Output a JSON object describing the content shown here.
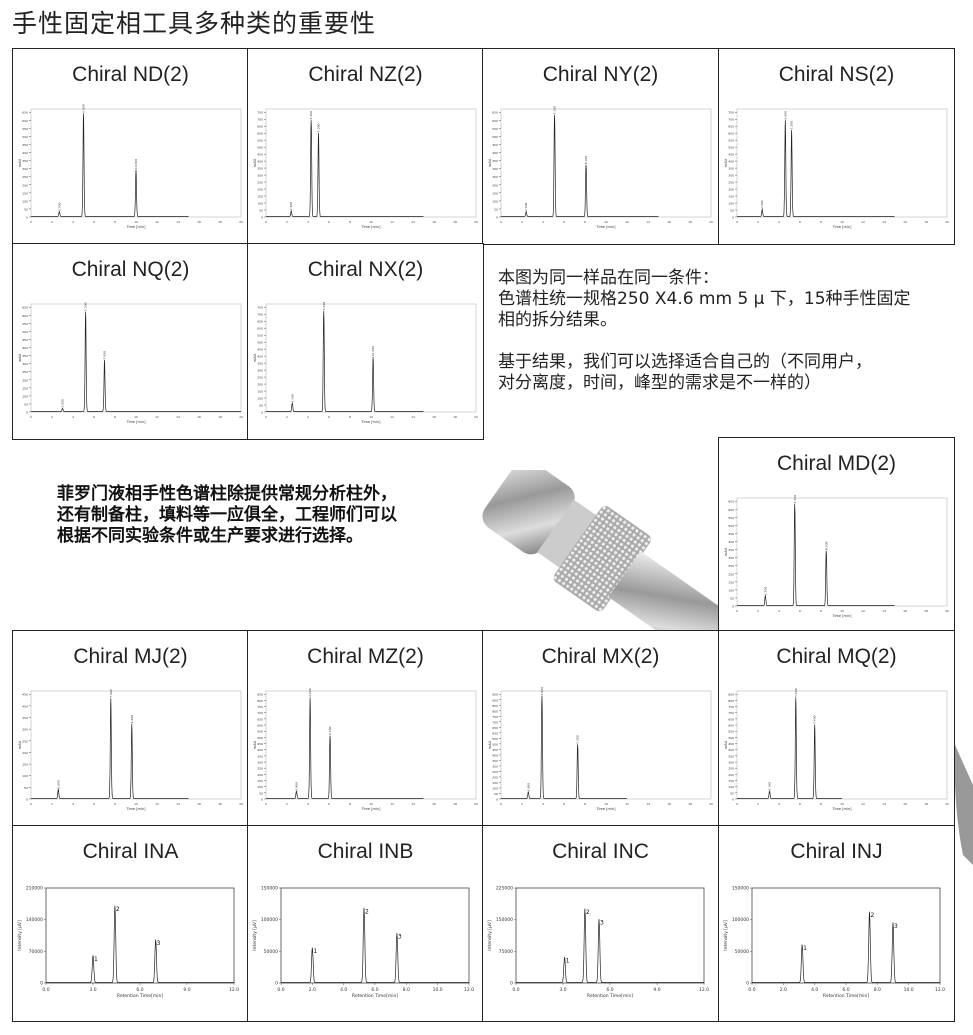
{
  "page_title": "手性固定相工具多种类的重要性",
  "note_1": [
    "本图为同一样品在同一条件：",
    "色谱柱统一规格250 X4.6 mm 5 μ 下，15种手性固定",
    "相的拆分结果。"
  ],
  "note_2": [
    "基于结果，我们可以选择适合自己的（不同用户，",
    "对分离度，时间，峰型的需求是不一样的）"
  ],
  "note_3": [
    "菲罗门液相手性色谱柱除提供常规分析柱外，",
    "还有制备柱，填料等一应俱全，工程师们可以",
    "根据不同实验条件或生产要求进行选择。"
  ],
  "chart_data": [
    {
      "type": "line",
      "title": "Chiral ND(2)",
      "xlabel": "Time [min]",
      "ylabel": "mAU",
      "xlim": [
        0,
        20
      ],
      "ylim": [
        0,
        650
      ],
      "peaks": [
        [
          2.7,
          30
        ],
        [
          5.0,
          640
        ],
        [
          10.0,
          290
        ]
      ],
      "trace_end": 15
    },
    {
      "type": "line",
      "title": "Chiral NZ(2)",
      "xlabel": "Time [min]",
      "ylabel": "mAU",
      "xlim": [
        0,
        20
      ],
      "ylim": [
        0,
        750
      ],
      "peaks": [
        [
          2.4,
          40
        ],
        [
          4.3,
          690
        ],
        [
          5.0,
          600
        ]
      ],
      "trace_end": 15
    },
    {
      "type": "line",
      "title": "Chiral NY(2)",
      "xlabel": "Time [min]",
      "ylabel": "mAU",
      "xlim": [
        0,
        20
      ],
      "ylim": [
        0,
        650
      ],
      "peaks": [
        [
          2.4,
          30
        ],
        [
          5.1,
          630
        ],
        [
          8.1,
          320
        ]
      ],
      "trace_end": 15
    },
    {
      "type": "line",
      "title": "Chiral NS(2)",
      "xlabel": "Time [min]",
      "ylabel": "mAU",
      "xlim": [
        0,
        20
      ],
      "ylim": [
        0,
        750
      ],
      "peaks": [
        [
          2.4,
          50
        ],
        [
          4.6,
          690
        ],
        [
          5.2,
          620
        ]
      ],
      "trace_end": 15
    },
    {
      "type": "line",
      "title": "Chiral NQ(2)",
      "xlabel": "Time [min]",
      "ylabel": "mAU",
      "xlim": [
        0,
        20
      ],
      "ylim": [
        0,
        650
      ],
      "peaks": [
        [
          3.0,
          20
        ],
        [
          5.2,
          620
        ],
        [
          7.0,
          320
        ]
      ],
      "trace_end": 20
    },
    {
      "type": "line",
      "title": "Chiral NX(2)",
      "xlabel": "Time [min]",
      "ylabel": "mAU",
      "xlim": [
        0,
        20
      ],
      "ylim": [
        0,
        750
      ],
      "peaks": [
        [
          2.5,
          60
        ],
        [
          5.5,
          720
        ],
        [
          10.2,
          390
        ]
      ],
      "trace_end": 15
    },
    {
      "type": "line",
      "title": "Chiral MD(2)",
      "xlabel": "Time [min]",
      "ylabel": "mAU",
      "xlim": [
        0,
        20
      ],
      "ylim": [
        0,
        650
      ],
      "peaks": [
        [
          2.7,
          60
        ],
        [
          5.5,
          630
        ],
        [
          8.5,
          340
        ]
      ],
      "trace_end": 15
    },
    {
      "type": "line",
      "title": "Chiral MJ(2)",
      "xlabel": "Time [min]",
      "ylabel": "mAU",
      "xlim": [
        0,
        20
      ],
      "ylim": [
        0,
        450
      ],
      "peaks": [
        [
          2.6,
          40
        ],
        [
          7.6,
          430
        ],
        [
          9.6,
          320
        ]
      ],
      "trace_end": 15
    },
    {
      "type": "line",
      "title": "Chiral MZ(2)",
      "xlabel": "Time [min]",
      "ylabel": "mAU",
      "xlim": [
        0,
        20
      ],
      "ylim": [
        0,
        850
      ],
      "peaks": [
        [
          2.9,
          60
        ],
        [
          4.2,
          820
        ],
        [
          6.1,
          510
        ]
      ],
      "trace_end": 15
    },
    {
      "type": "line",
      "title": "Chiral MX(2)",
      "xlabel": "Time [min]",
      "ylabel": "mAU",
      "xlim": [
        0,
        20
      ],
      "ylim": [
        0,
        950
      ],
      "peaks": [
        [
          2.6,
          60
        ],
        [
          3.9,
          930
        ],
        [
          7.3,
          490
        ]
      ],
      "trace_end": 12
    },
    {
      "type": "line",
      "title": "Chiral MQ(2)",
      "xlabel": "Time [min]",
      "ylabel": "mAU",
      "xlim": [
        0,
        20
      ],
      "ylim": [
        0,
        850
      ],
      "peaks": [
        [
          3.1,
          60
        ],
        [
          5.6,
          820
        ],
        [
          7.4,
          600
        ]
      ],
      "trace_end": 10
    },
    {
      "type": "line",
      "title": "Chiral INA",
      "xlabel": "Retention Time[min]",
      "ylabel": "Intensity [μV]",
      "xlim": [
        0,
        12
      ],
      "ylim": [
        0,
        210000
      ],
      "yticks": [
        0,
        70000,
        140000,
        210000
      ],
      "xticks": [
        "0.0",
        "3.0",
        "6.0",
        "9.0",
        "12.0"
      ],
      "peak_labels": [
        "1",
        "2",
        "3"
      ],
      "peaks": [
        [
          3.0,
          60000
        ],
        [
          4.4,
          170000
        ],
        [
          7.0,
          95000
        ]
      ]
    },
    {
      "type": "line",
      "title": "Chiral INB",
      "xlabel": "Retention Time[min]",
      "ylabel": "Intensity [μV]",
      "xlim": [
        0,
        12
      ],
      "ylim": [
        0,
        150000
      ],
      "yticks": [
        0,
        50000,
        100000,
        150000
      ],
      "xticks": [
        "0.0",
        "2.0",
        "4.0",
        "6.0",
        "8.0",
        "10.0",
        "12.0"
      ],
      "peak_labels": [
        "1",
        "2",
        "3"
      ],
      "peaks": [
        [
          2.0,
          55000
        ],
        [
          5.3,
          118000
        ],
        [
          7.4,
          78000
        ]
      ]
    },
    {
      "type": "line",
      "title": "Chiral INC",
      "xlabel": "Retention Time[min]",
      "ylabel": "Intensity [μV]",
      "xlim": [
        0,
        12
      ],
      "ylim": [
        0,
        225000
      ],
      "yticks": [
        0,
        75000,
        150000,
        225000
      ],
      "xticks": [
        "0.0",
        "3.0",
        "6.0",
        "9.0",
        "12.0"
      ],
      "peak_labels": [
        "1",
        "2",
        "3"
      ],
      "peaks": [
        [
          3.1,
          60000
        ],
        [
          4.4,
          175000
        ],
        [
          5.3,
          150000
        ]
      ]
    },
    {
      "type": "line",
      "title": "Chiral INJ",
      "xlabel": "Retention Time[min]",
      "ylabel": "Intensity [μV]",
      "xlim": [
        0,
        12
      ],
      "ylim": [
        0,
        150000
      ],
      "yticks": [
        0,
        50000,
        100000,
        150000
      ],
      "xticks": [
        "0.0",
        "2.0",
        "4.0",
        "6.0",
        "8.0",
        "10.0",
        "12.0"
      ],
      "peak_labels": [
        "1",
        "2",
        "3"
      ],
      "peaks": [
        [
          3.2,
          60000
        ],
        [
          7.5,
          112000
        ],
        [
          9.0,
          95000
        ]
      ]
    }
  ]
}
